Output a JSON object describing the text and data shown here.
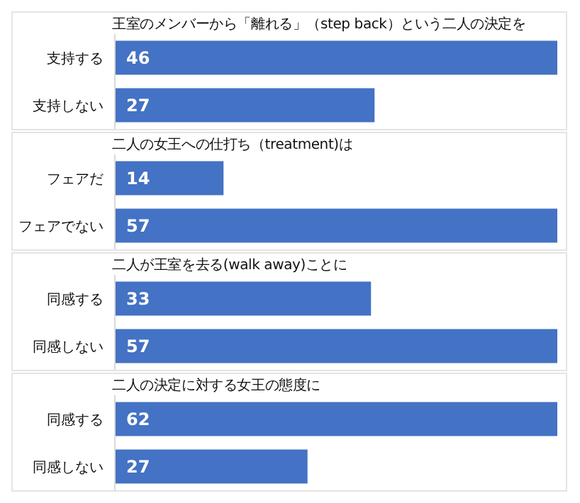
{
  "chart_data": [
    {
      "type": "bar",
      "orientation": "horizontal",
      "title": "王室のメンバーから「離れる」（step back）という二人の決定を",
      "categories": [
        "支持する",
        "支持しない"
      ],
      "values": [
        46,
        27
      ],
      "color": "#4472c4",
      "data_labels": true,
      "tick_labels": "y",
      "grid": false,
      "legend": false
    },
    {
      "type": "bar",
      "orientation": "horizontal",
      "title": "二人の女王への仕打ち（treatment)は",
      "categories": [
        "フェアだ",
        "フェアでない"
      ],
      "values": [
        14,
        57
      ],
      "color": "#4472c4",
      "data_labels": true,
      "tick_labels": "y",
      "grid": false,
      "legend": false
    },
    {
      "type": "bar",
      "orientation": "horizontal",
      "title": "二人が王室を去る(walk away)ことに",
      "categories": [
        "同感する",
        "同感しない"
      ],
      "values": [
        33,
        57
      ],
      "color": "#4472c4",
      "data_labels": true,
      "tick_labels": "y",
      "grid": false,
      "legend": false
    },
    {
      "type": "bar",
      "orientation": "horizontal",
      "title": "二人の決定に対する女王の態度に",
      "categories": [
        "同感する",
        "同感しない"
      ],
      "values": [
        62,
        27
      ],
      "color": "#4472c4",
      "data_labels": true,
      "tick_labels": "y",
      "grid": false,
      "legend": false
    }
  ]
}
